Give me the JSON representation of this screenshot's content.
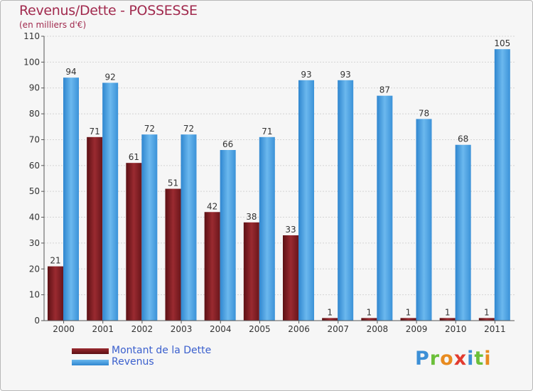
{
  "chart_data": {
    "type": "bar",
    "title": "Revenus/Dette - POSSESSE",
    "subtitle": "(en milliers d'€)",
    "categories": [
      "2000",
      "2001",
      "2002",
      "2003",
      "2004",
      "2005",
      "2006",
      "2007",
      "2008",
      "2009",
      "2010",
      "2011"
    ],
    "series": [
      {
        "name": "Montant de la Dette",
        "color": "#7a1f24",
        "values": [
          21,
          71,
          61,
          51,
          42,
          38,
          33,
          1,
          1,
          1,
          1,
          1
        ]
      },
      {
        "name": "Revenus",
        "color": "#4aa3e6",
        "values": [
          94,
          92,
          72,
          72,
          66,
          71,
          93,
          93,
          87,
          78,
          68,
          105
        ]
      }
    ],
    "ylim": [
      0,
      110
    ],
    "yticks": [
      0,
      10,
      20,
      30,
      40,
      50,
      60,
      70,
      80,
      90,
      100,
      110
    ],
    "grid": true,
    "legend_position": "bottom-left"
  },
  "logo": {
    "text": "Proxiti",
    "colors": [
      "#3c8fd6",
      "#6bbf3a",
      "#e88b1f",
      "#e23b2f",
      "#3c8fd6",
      "#6bbf3a",
      "#e88b1f"
    ]
  }
}
